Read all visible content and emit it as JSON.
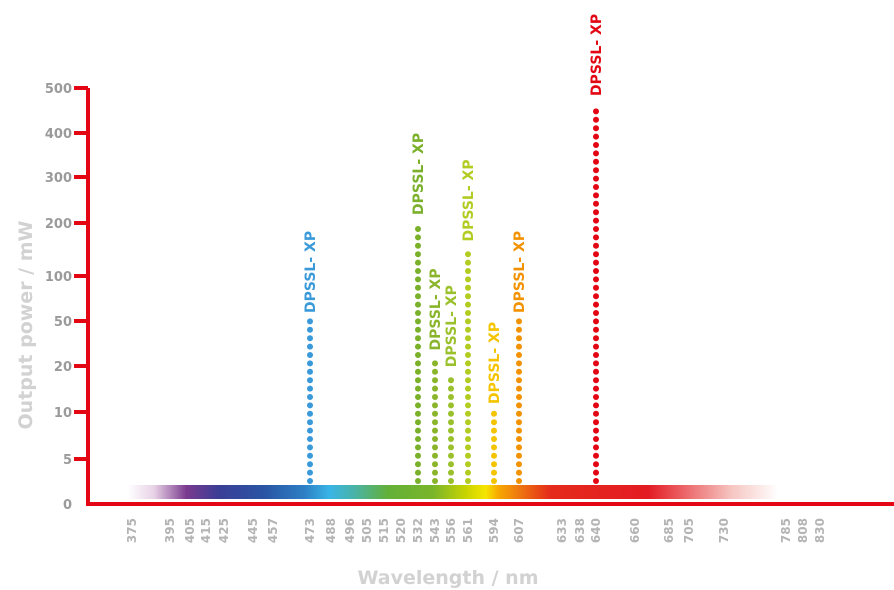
{
  "chart_data": {
    "type": "scatter",
    "title": "",
    "xlabel": "Wavelength / nm",
    "ylabel": "Output power / mW",
    "y_ticks": [
      "0",
      "5",
      "10",
      "20",
      "50",
      "100",
      "200",
      "300",
      "400",
      "500"
    ],
    "x_ticks": [
      "375",
      "395",
      "405",
      "415",
      "425",
      "445",
      "457",
      "473",
      "488",
      "496",
      "505",
      "515",
      "520",
      "532",
      "543",
      "556",
      "561",
      "594",
      "607",
      "633",
      "638",
      "640",
      "660",
      "685",
      "705",
      "730",
      "785",
      "808",
      "830"
    ],
    "grid": false,
    "legend": "none",
    "axis_color": "#e30613",
    "series": [
      {
        "name": "DPSSL- XP",
        "wavelength": "473",
        "power_mw": 50,
        "color": "#3a9ad9"
      },
      {
        "name": "DPSSL- XP",
        "wavelength": "532",
        "power_mw": 200,
        "color": "#7ab02a"
      },
      {
        "name": "DPSSL- XP",
        "wavelength": "543",
        "power_mw": 25,
        "color": "#8ab52b"
      },
      {
        "name": "DPSSL- XP",
        "wavelength": "556",
        "power_mw": 18,
        "color": "#9ac02c"
      },
      {
        "name": "DPSSL- XP",
        "wavelength": "561",
        "power_mw": 150,
        "color": "#b3cc22"
      },
      {
        "name": "DPSSL- XP",
        "wavelength": "594",
        "power_mw": 10,
        "color": "#f5c400"
      },
      {
        "name": "DPSSL- XP",
        "wavelength": "607",
        "power_mw": 50,
        "color": "#f39200"
      },
      {
        "name": "DPSSL- XP",
        "wavelength": "640",
        "power_mw": 500,
        "color": "#e30613"
      }
    ]
  }
}
